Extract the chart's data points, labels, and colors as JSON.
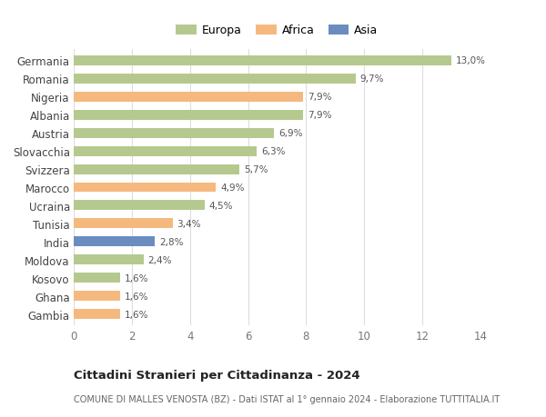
{
  "categories": [
    "Germania",
    "Romania",
    "Nigeria",
    "Albania",
    "Austria",
    "Slovacchia",
    "Svizzera",
    "Marocco",
    "Ucraina",
    "Tunisia",
    "India",
    "Moldova",
    "Kosovo",
    "Ghana",
    "Gambia"
  ],
  "values": [
    13.0,
    9.7,
    7.9,
    7.9,
    6.9,
    6.3,
    5.7,
    4.9,
    4.5,
    3.4,
    2.8,
    2.4,
    1.6,
    1.6,
    1.6
  ],
  "continents": [
    "Europa",
    "Europa",
    "Africa",
    "Europa",
    "Europa",
    "Europa",
    "Europa",
    "Africa",
    "Europa",
    "Africa",
    "Asia",
    "Europa",
    "Europa",
    "Africa",
    "Africa"
  ],
  "colors": {
    "Europa": "#b5c98e",
    "Africa": "#f5b97f",
    "Asia": "#6b8cbe"
  },
  "xlim": [
    0,
    14
  ],
  "xticks": [
    0,
    2,
    4,
    6,
    8,
    10,
    12,
    14
  ],
  "title": "Cittadini Stranieri per Cittadinanza - 2024",
  "subtitle": "COMUNE DI MALLES VENOSTA (BZ) - Dati ISTAT al 1° gennaio 2024 - Elaborazione TUTTITALIA.IT",
  "background_color": "#ffffff",
  "grid_color": "#dddddd"
}
